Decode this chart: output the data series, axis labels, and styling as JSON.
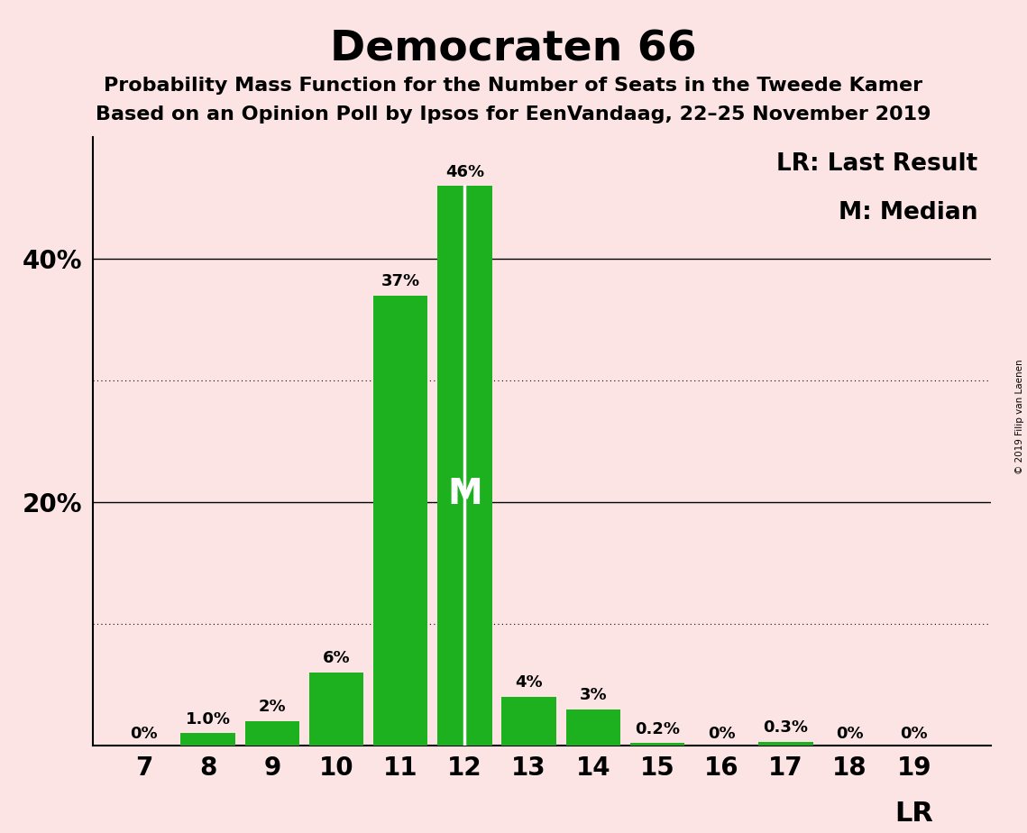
{
  "title": "Democraten 66",
  "subtitle1": "Probability Mass Function for the Number of Seats in the Tweede Kamer",
  "subtitle2": "Based on an Opinion Poll by Ipsos for EenVandaag, 22–25 November 2019",
  "copyright": "© 2019 Filip van Laenen",
  "seats": [
    7,
    8,
    9,
    10,
    11,
    12,
    13,
    14,
    15,
    16,
    17,
    18,
    19
  ],
  "probabilities": [
    0.0,
    1.0,
    2.0,
    6.0,
    37.0,
    46.0,
    4.0,
    3.0,
    0.2,
    0.0,
    0.3,
    0.0,
    0.0
  ],
  "labels": [
    "0%",
    "1.0%",
    "2%",
    "6%",
    "37%",
    "46%",
    "4%",
    "3%",
    "0.2%",
    "0%",
    "0.3%",
    "0%",
    "0%"
  ],
  "bar_color": "#1db120",
  "background_color": "#fce4e4",
  "median": 12,
  "last_result": 19,
  "legend_lr": "LR: Last Result",
  "legend_m": "M: Median",
  "dotted_lines": [
    10,
    30
  ],
  "solid_lines": [
    20,
    40
  ],
  "ylim": [
    0,
    50
  ],
  "ytick_labels": [
    "",
    "",
    "20%",
    "",
    "40%"
  ],
  "ytick_values": [
    0,
    10,
    20,
    30,
    40
  ]
}
